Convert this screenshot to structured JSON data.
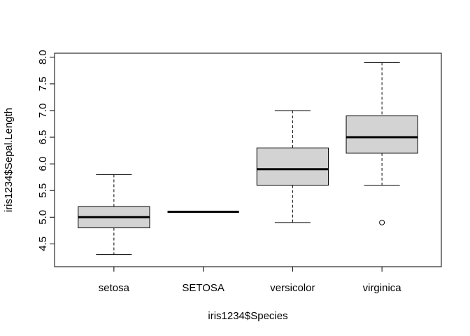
{
  "chart_data": {
    "type": "boxplot",
    "title": "",
    "xlabel": "iris1234$Species",
    "ylabel": "iris1234$Sepal.Length",
    "categories": [
      "setosa",
      "SETOSA",
      "versicolor",
      "virginica"
    ],
    "boxes": [
      {
        "category": "setosa",
        "whisker_low": 4.3,
        "q1": 4.8,
        "median": 5.0,
        "q3": 5.2,
        "whisker_high": 5.8,
        "outliers": []
      },
      {
        "category": "SETOSA",
        "whisker_low": 5.1,
        "q1": 5.1,
        "median": 5.1,
        "q3": 5.1,
        "whisker_high": 5.1,
        "outliers": []
      },
      {
        "category": "versicolor",
        "whisker_low": 4.9,
        "q1": 5.6,
        "median": 5.9,
        "q3": 6.3,
        "whisker_high": 7.0,
        "outliers": []
      },
      {
        "category": "virginica",
        "whisker_low": 5.6,
        "q1": 6.2,
        "median": 6.5,
        "q3": 6.9,
        "whisker_high": 7.9,
        "outliers": [
          4.9
        ]
      }
    ],
    "yticks": [
      "4.5",
      "5.0",
      "5.5",
      "6.0",
      "6.5",
      "7.0",
      "7.5",
      "8.0"
    ],
    "ylim": [
      4.19,
      8.01
    ],
    "box_fill": "#d3d3d3",
    "grid": false
  }
}
